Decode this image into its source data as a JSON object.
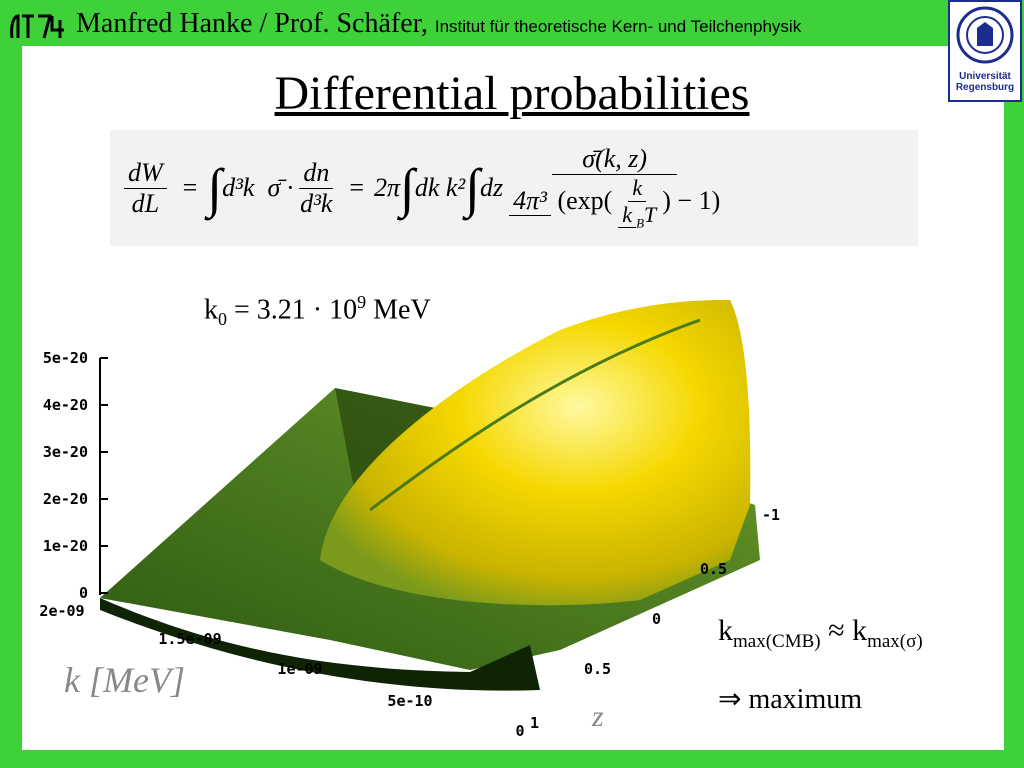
{
  "header": {
    "author": "Manfred Hanke / Prof. Schäfer,",
    "institute": "Institut für theoretische Kern- und Teilchenphysik",
    "university": [
      "Universität",
      "Regensburg"
    ]
  },
  "title": "Differential probabilities",
  "formula": {
    "lhs_num": "dW",
    "lhs_den": "dL",
    "eq1": "=",
    "int1": "∫",
    "int1_body": "d³k  σ̄ ·",
    "mid_num": "dn",
    "mid_den": "d³k",
    "eq2": "=",
    "pre": "2π",
    "int2": "∫",
    "int2_body": "dk k²",
    "int3": "∫",
    "int3_body": "dz",
    "num": "σ̄(k, z)",
    "den_pre": "4π³",
    "den_open": "(exp(",
    "frac_num": "k",
    "frac_den": "k",
    "frac_den_sub": "B",
    "frac_den_post": "T",
    "den_close": ") − 1)"
  },
  "parameter": {
    "symbol": "k",
    "sub": "0",
    "value": " = 3.21 · 10",
    "exp": "9",
    "unit": " MeV"
  },
  "plot": {
    "vertical_ticks": [
      "5e-20",
      "4e-20",
      "3e-20",
      "2e-20",
      "1e-20",
      "0"
    ],
    "k_ticks": [
      "2e-09",
      "1.5e-09",
      "1e-09",
      "5e-10",
      "0"
    ],
    "z_ticks": [
      "-1",
      "0.5",
      "0",
      "0.5",
      "1"
    ],
    "k_label": "k [MeV]",
    "z_label": "z"
  },
  "notes": {
    "line1": {
      "k1": "k",
      "sub1": "max(CMB)",
      "approx": " ≈ ",
      "k2": "k",
      "sub2": "max(σ)"
    },
    "line2": "⇒ maximum"
  }
}
